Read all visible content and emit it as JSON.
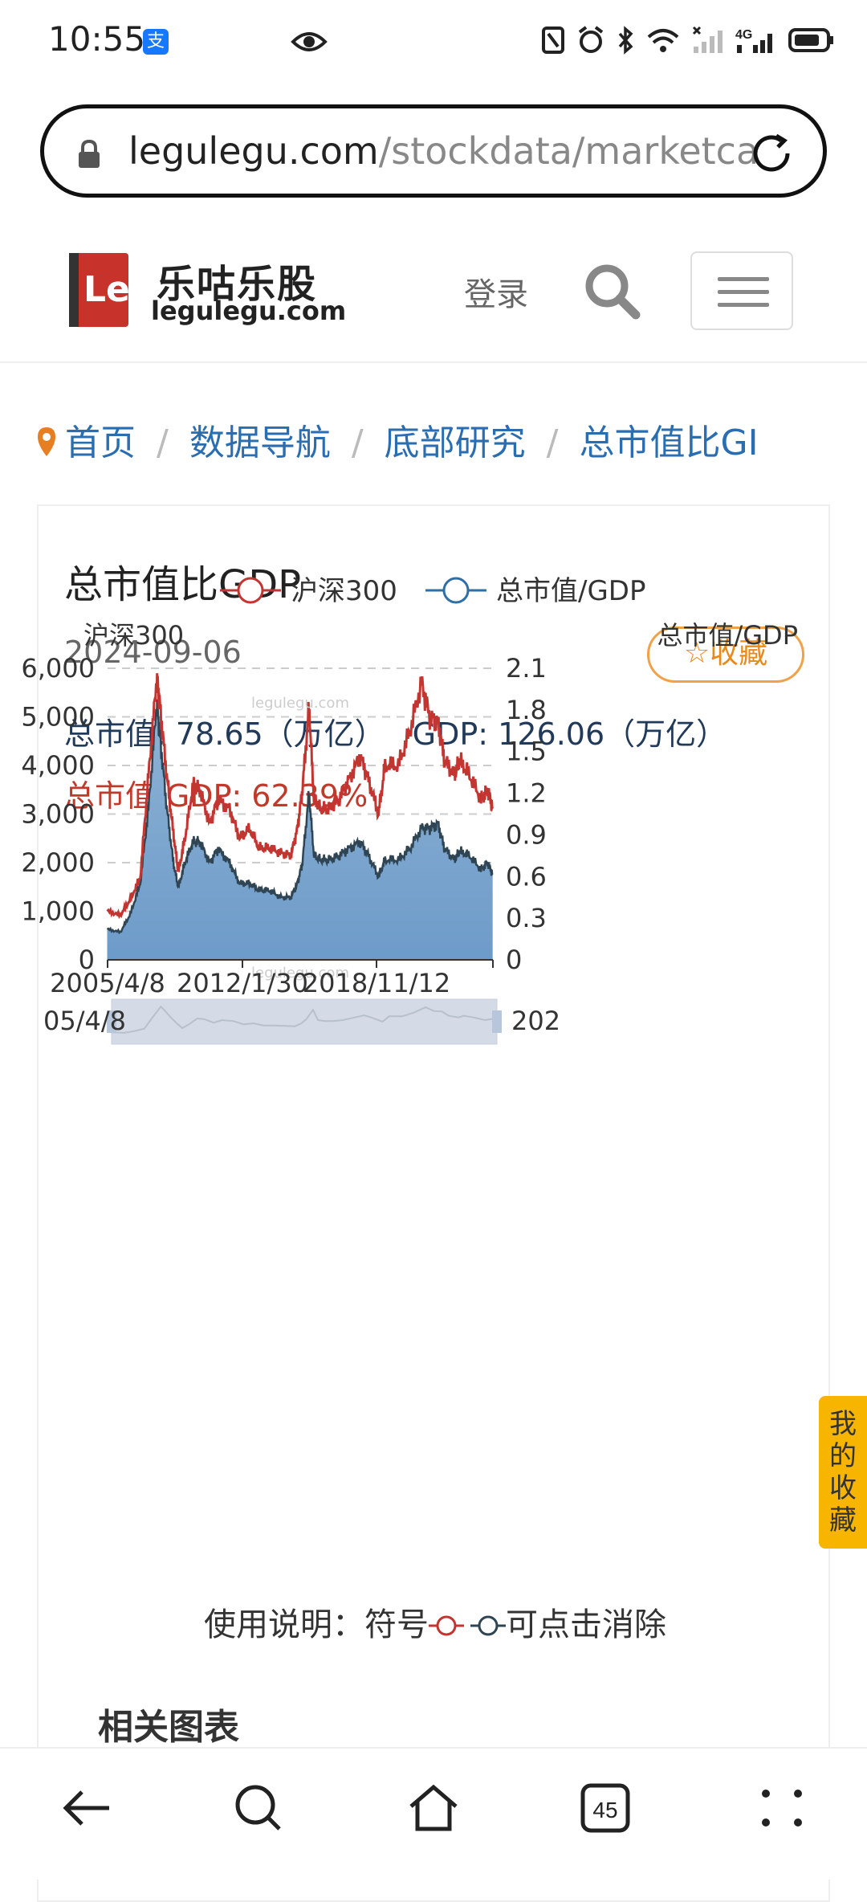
{
  "status_bar": {
    "time": "10:55",
    "alipay_badge": "支",
    "icons": [
      "eye-icon",
      "nfc-icon",
      "alarm-icon",
      "bluetooth-icon",
      "wifi-icon",
      "signal-icon",
      "4g-signal-icon",
      "battery-icon"
    ]
  },
  "address_bar": {
    "domain": "legulegu.com",
    "path": "/stockdata/marketca"
  },
  "header": {
    "logo_cn": "乐咕乐股",
    "logo_en": "legulegu.com",
    "logo_mark": "Le",
    "login": "登录"
  },
  "breadcrumb": {
    "items": [
      "首页",
      "数据导航",
      "底部研究",
      "总市值比GI"
    ]
  },
  "card": {
    "title": "总市值比GDP",
    "date": "2024-09-06",
    "favorite": "收藏",
    "market_cap_label": "总市值: 78.65（万亿）",
    "gdp_label": "GDP: 126.06（万亿）",
    "ratio_label": "总市值/GDP: 62.39%",
    "usage_prefix": "使用说明：符号",
    "usage_suffix": "可点击消除",
    "related": "相关图表"
  },
  "floating_tab": {
    "label": "我的收藏"
  },
  "chart_data": {
    "type": "line",
    "watermark": "legulegu.com",
    "legend": [
      "沪深300",
      "总市值/GDP"
    ],
    "left_axis_name": "沪深300",
    "right_axis_name": "总市值/GDP",
    "left_ticks": [
      "6,000",
      "5,000",
      "4,000",
      "3,000",
      "2,000",
      "1,000",
      "0"
    ],
    "right_ticks": [
      "2.1",
      "1.8",
      "1.5",
      "1.2",
      "0.9",
      "0.6",
      "0.3",
      "0"
    ],
    "ylim_left": [
      0,
      6000
    ],
    "ylim_right": [
      0,
      2.1
    ],
    "x_labels": [
      "2005/4/8",
      "2012/1/30",
      "2018/11/12"
    ],
    "zoom_start_label": "05/4/8",
    "zoom_end_label": "202",
    "colors": {
      "hs300": "#c23531",
      "ratio_line": "#2f4554",
      "ratio_fill_top": "#8fb3d4",
      "ratio_fill_bottom": "#6d9bc9"
    },
    "x_range": [
      "2005-04-08",
      "2024-09-06"
    ],
    "series": [
      {
        "name": "沪深300",
        "x": [
          "2005-04",
          "2005-12",
          "2006-06",
          "2006-12",
          "2007-05",
          "2007-10",
          "2007-12",
          "2008-04",
          "2008-08",
          "2008-11",
          "2009-03",
          "2009-08",
          "2009-12",
          "2010-06",
          "2010-11",
          "2011-06",
          "2011-12",
          "2012-06",
          "2012-12",
          "2013-06",
          "2014-01",
          "2014-07",
          "2014-11",
          "2015-02",
          "2015-06",
          "2015-09",
          "2016-01",
          "2016-06",
          "2016-12",
          "2017-06",
          "2018-01",
          "2018-06",
          "2018-12",
          "2019-04",
          "2019-12",
          "2020-07",
          "2021-02",
          "2021-07",
          "2021-12",
          "2022-04",
          "2022-10",
          "2023-01",
          "2023-07",
          "2024-02",
          "2024-06",
          "2024-09"
        ],
        "values": [
          1000,
          920,
          1250,
          1700,
          3800,
          5800,
          5200,
          3800,
          2600,
          1800,
          2500,
          3600,
          3500,
          2800,
          3300,
          3100,
          2500,
          2700,
          2300,
          2300,
          2200,
          2150,
          2700,
          3500,
          5200,
          3300,
          3100,
          3100,
          3300,
          3700,
          4200,
          3700,
          3000,
          4000,
          4000,
          4700,
          5700,
          5000,
          4900,
          4100,
          3800,
          4100,
          3800,
          3300,
          3500,
          3150
        ]
      },
      {
        "name": "总市值/GDP",
        "x": [
          "2005-04",
          "2005-12",
          "2006-06",
          "2006-12",
          "2007-05",
          "2007-10",
          "2007-12",
          "2008-04",
          "2008-08",
          "2008-11",
          "2009-03",
          "2009-08",
          "2009-12",
          "2010-06",
          "2010-11",
          "2011-06",
          "2011-12",
          "2012-06",
          "2012-12",
          "2013-06",
          "2014-01",
          "2014-07",
          "2014-11",
          "2015-02",
          "2015-06",
          "2015-09",
          "2016-01",
          "2016-06",
          "2016-12",
          "2017-06",
          "2018-01",
          "2018-06",
          "2018-12",
          "2019-04",
          "2019-12",
          "2020-07",
          "2021-02",
          "2021-07",
          "2021-12",
          "2022-04",
          "2022-10",
          "2023-01",
          "2023-07",
          "2024-02",
          "2024-06",
          "2024-09"
        ],
        "values": [
          0.22,
          0.2,
          0.33,
          0.55,
          1.1,
          1.85,
          1.6,
          1.1,
          0.7,
          0.52,
          0.7,
          0.85,
          0.85,
          0.7,
          0.8,
          0.7,
          0.55,
          0.55,
          0.5,
          0.5,
          0.45,
          0.45,
          0.55,
          0.7,
          1.2,
          0.75,
          0.72,
          0.72,
          0.75,
          0.8,
          0.85,
          0.75,
          0.6,
          0.72,
          0.72,
          0.8,
          0.95,
          0.95,
          0.98,
          0.8,
          0.72,
          0.78,
          0.75,
          0.65,
          0.7,
          0.62
        ]
      }
    ]
  },
  "bottom_nav": {
    "tab_count": "45"
  }
}
